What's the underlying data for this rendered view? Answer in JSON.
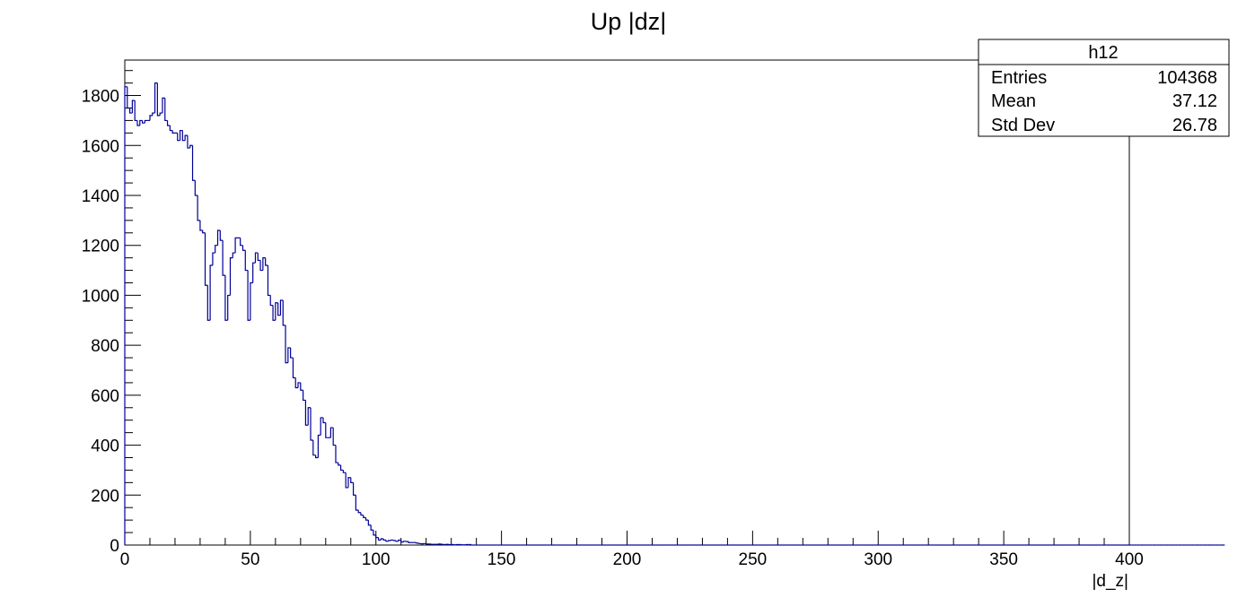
{
  "chart_data": {
    "type": "bar",
    "title": "Up |dz|",
    "xlabel": "|d_z|",
    "ylabel": "",
    "xlim": [
      0,
      400
    ],
    "ylim": [
      0,
      1942
    ],
    "x_ticks": [
      0,
      50,
      100,
      150,
      200,
      250,
      300,
      350,
      400
    ],
    "y_ticks": [
      0,
      200,
      400,
      600,
      800,
      1000,
      1200,
      1400,
      1600,
      1800
    ],
    "bin_width": 1,
    "bins_start": 0,
    "values": [
      1835,
      1750,
      1730,
      1780,
      1700,
      1680,
      1700,
      1690,
      1700,
      1700,
      1720,
      1730,
      1850,
      1720,
      1730,
      1790,
      1700,
      1680,
      1660,
      1650,
      1650,
      1620,
      1660,
      1620,
      1640,
      1590,
      1600,
      1460,
      1400,
      1300,
      1260,
      1250,
      1040,
      900,
      1120,
      1170,
      1200,
      1260,
      1220,
      1080,
      900,
      1000,
      1150,
      1170,
      1230,
      1230,
      1200,
      1180,
      1100,
      900,
      1050,
      1130,
      1170,
      1140,
      1100,
      1150,
      1120,
      1000,
      960,
      900,
      970,
      920,
      980,
      880,
      730,
      790,
      750,
      670,
      630,
      650,
      620,
      580,
      480,
      550,
      420,
      360,
      350,
      440,
      510,
      490,
      430,
      430,
      470,
      400,
      330,
      320,
      300,
      290,
      230,
      270,
      250,
      200,
      140,
      130,
      120,
      110,
      100,
      80,
      60,
      40,
      30,
      20,
      25,
      20,
      15,
      18,
      20,
      18,
      15,
      20,
      12,
      15,
      14,
      10,
      10,
      10,
      8,
      6,
      5,
      6,
      4,
      4,
      3,
      3,
      3,
      4,
      3,
      2,
      3,
      2,
      2,
      1,
      2,
      2,
      1,
      1,
      2,
      2,
      0,
      0,
      0,
      0,
      0,
      0,
      0,
      0,
      0,
      0,
      0,
      0,
      0,
      0,
      0,
      0,
      0,
      0,
      0,
      0,
      0,
      0,
      0,
      0,
      0,
      0,
      0,
      0,
      0,
      0,
      0,
      0,
      0,
      0,
      0,
      0,
      0,
      0,
      0,
      0,
      0,
      0,
      0,
      0,
      0,
      0,
      0,
      0,
      0,
      0,
      0,
      0,
      0,
      0,
      0,
      0,
      0,
      0,
      0,
      0,
      0,
      0,
      0,
      0,
      0,
      0,
      0,
      0,
      0,
      0,
      0,
      0,
      0,
      0,
      0,
      0,
      0,
      0,
      0,
      0,
      0,
      0,
      0,
      0,
      0,
      0,
      0,
      0,
      0,
      0,
      0,
      0,
      0,
      0,
      0,
      0,
      0,
      0,
      0,
      0,
      0,
      0,
      0,
      0,
      0,
      0,
      0,
      0,
      0,
      0,
      0,
      0,
      0,
      0,
      0,
      0,
      0,
      0,
      0,
      0,
      0,
      0,
      0,
      0,
      0,
      0,
      0,
      0,
      0,
      0,
      0,
      0,
      0,
      0,
      0,
      0,
      0,
      0,
      0,
      0,
      0,
      0,
      0,
      0,
      0,
      0,
      0,
      0,
      0,
      0,
      0,
      0,
      0,
      0,
      0,
      0,
      0,
      0,
      0,
      0,
      0,
      0,
      0,
      0,
      0,
      0,
      0,
      0,
      0,
      0,
      0,
      0,
      0,
      0,
      0,
      0,
      0,
      0,
      0,
      0,
      0,
      0,
      0,
      0,
      0,
      0,
      0,
      0,
      0,
      0,
      0,
      0,
      0,
      0,
      0,
      0,
      0,
      0,
      0,
      0,
      0,
      0,
      0,
      0,
      0,
      0,
      0,
      0,
      0,
      0,
      0,
      0,
      0,
      0,
      0,
      0,
      0,
      0,
      0,
      0,
      0,
      0,
      0,
      0,
      0,
      0,
      0,
      0,
      0,
      0,
      0,
      0,
      0,
      0,
      0,
      0,
      0,
      0,
      0,
      0,
      0,
      0,
      0,
      0,
      0,
      0,
      0,
      0,
      0,
      0,
      0,
      0,
      0,
      0,
      0,
      0,
      0,
      0,
      0,
      0,
      0,
      0,
      0,
      0,
      0,
      0,
      0,
      0,
      0,
      0,
      0,
      0,
      0,
      0,
      0,
      0,
      0,
      0,
      0,
      0,
      0,
      0,
      0,
      0,
      0,
      0,
      0,
      0,
      0,
      0,
      0,
      0,
      0,
      0,
      0,
      0,
      0,
      0,
      0,
      0
    ],
    "line_color": "#000099",
    "stats_box": {
      "name": "h12",
      "rows": [
        {
          "label": "Entries",
          "value": "104368"
        },
        {
          "label": "Mean",
          "value": "37.12"
        },
        {
          "label": "Std Dev",
          "value": "26.78"
        }
      ],
      "placement": "top-right"
    }
  }
}
